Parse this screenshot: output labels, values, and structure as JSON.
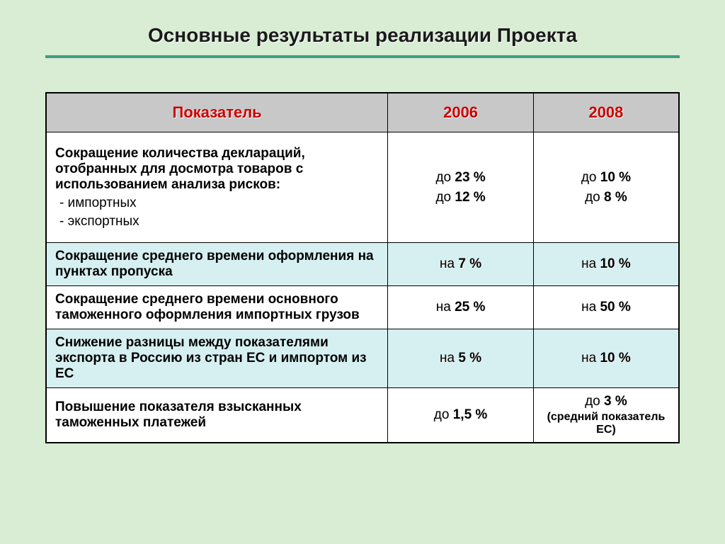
{
  "title": "Основные результаты реализации Проекта",
  "colors": {
    "page_bg": "#d9ecd4",
    "rule": "#3d9e7e",
    "header_bg": "#c8c8c8",
    "header_text": "#cc0000",
    "row_bg": "#ffffff",
    "row_alt_bg": "#d6f0f2",
    "border": "#000000",
    "text": "#000000"
  },
  "table": {
    "columns": [
      {
        "key": "indicator",
        "label": "Показатель",
        "width_pct": 54
      },
      {
        "key": "y2006",
        "label": "2006",
        "width_pct": 23
      },
      {
        "key": "y2008",
        "label": "2008",
        "width_pct": 23
      }
    ],
    "rows": [
      {
        "alt": false,
        "indicator": {
          "lead": "Сокращение количества деклараций, отобранных для досмотра товаров с использованием анализа рисков:",
          "subs": [
            "- импортных",
            "- экспортных"
          ]
        },
        "y2006": {
          "lines": [
            {
              "prefix": "до ",
              "value": "23 %"
            },
            {
              "prefix": "до ",
              "value": "12 %"
            }
          ]
        },
        "y2008": {
          "lines": [
            {
              "prefix": "до ",
              "value": "10 %"
            },
            {
              "prefix": "до ",
              "value": "8 %"
            }
          ]
        }
      },
      {
        "alt": true,
        "indicator": {
          "lead": "Сокращение среднего времени оформления на пунктах пропуска"
        },
        "y2006": {
          "lines": [
            {
              "prefix": "на ",
              "value": "7 %"
            }
          ]
        },
        "y2008": {
          "lines": [
            {
              "prefix": "на ",
              "value": "10 %"
            }
          ]
        }
      },
      {
        "alt": false,
        "indicator": {
          "lead": "Сокращение среднего времени основного таможенного оформления импортных грузов"
        },
        "y2006": {
          "lines": [
            {
              "prefix": "на ",
              "value": "25 %"
            }
          ]
        },
        "y2008": {
          "lines": [
            {
              "prefix": "на ",
              "value": "50 %"
            }
          ]
        }
      },
      {
        "alt": true,
        "indicator": {
          "lead": "Снижение разницы между показателями экспорта в Россию из стран ЕС и импортом из ЕС"
        },
        "y2006": {
          "lines": [
            {
              "prefix": "на ",
              "value": "5 %"
            }
          ]
        },
        "y2008": {
          "lines": [
            {
              "prefix": "на ",
              "value": "10 %"
            }
          ]
        }
      },
      {
        "alt": false,
        "indicator": {
          "lead": "Повышение показателя взысканных таможенных платежей"
        },
        "y2006": {
          "lines": [
            {
              "prefix": "до ",
              "value": "1,5 %"
            }
          ]
        },
        "y2008": {
          "lines": [
            {
              "prefix": "до ",
              "value": "3 %"
            }
          ],
          "note": "(средний показатель ЕС)"
        }
      }
    ]
  }
}
